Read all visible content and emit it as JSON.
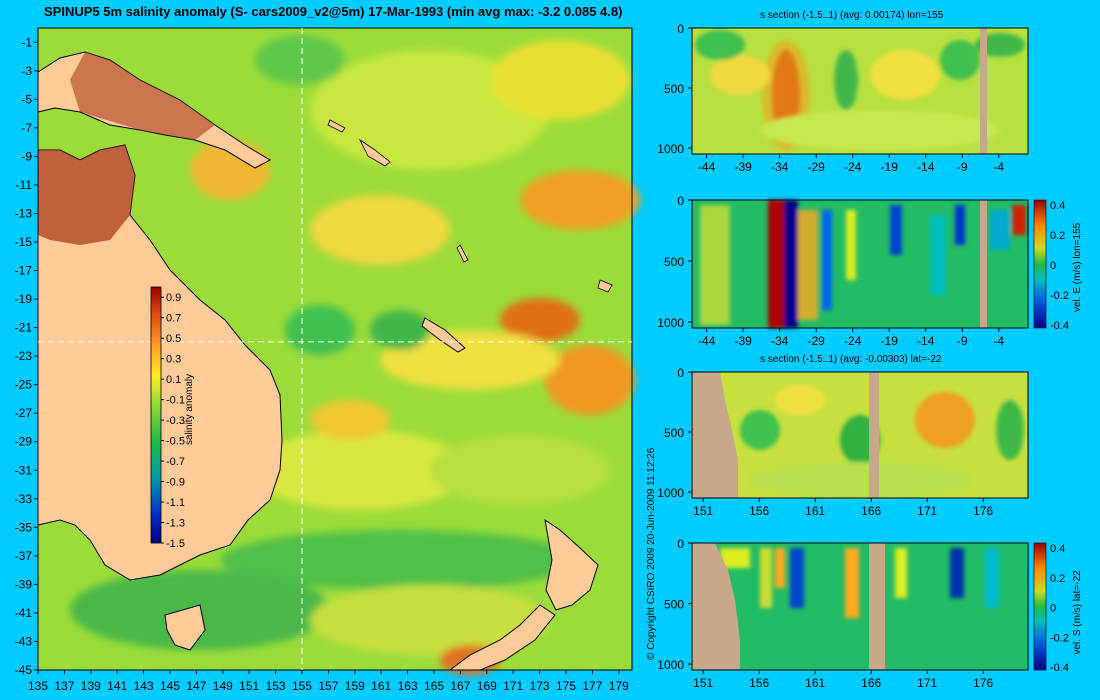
{
  "map": {
    "title": "SPINUP5 5m salinity anomaly (S- cars2009_v2@5m) 17-Mar-1993 (min avg max: -3.2 0.085 4.8)",
    "lon_ticks": [
      "135",
      "137",
      "139",
      "141",
      "143",
      "145",
      "147",
      "149",
      "151",
      "153",
      "155",
      "157",
      "159",
      "161",
      "163",
      "165",
      "167",
      "169",
      "171",
      "173",
      "175",
      "177",
      "179"
    ],
    "lat_ticks": [
      "-1",
      "-3",
      "-5",
      "-7",
      "-9",
      "-11",
      "-13",
      "-15",
      "-17",
      "-19",
      "-21",
      "-23",
      "-25",
      "-27",
      "-29",
      "-31",
      "-33",
      "-35",
      "-37",
      "-39",
      "-41",
      "-43",
      "-45"
    ],
    "section_lon": 155,
    "section_lat": -22,
    "colorbar": {
      "label": "salinity anomaly",
      "ticks": [
        "0.9",
        "0.7",
        "0.5",
        "0.3",
        "0.1",
        "-0.1",
        "-0.3",
        "-0.5",
        "-0.7",
        "-0.9",
        "-1.1",
        "-1.3",
        "-1.5"
      ]
    }
  },
  "copyright": "© Copyright CSIRO 2009   20-Jun-2009 11:12:26",
  "panels": [
    {
      "title": "s section (-1.5..1) (avg: 0.00174) lon=155",
      "xticks": [
        "-44",
        "-39",
        "-34",
        "-29",
        "-24",
        "-19",
        "-14",
        "-9",
        "-4"
      ],
      "yticks": [
        "0",
        "500",
        "1000"
      ],
      "cbar_label": "",
      "cbar_ticks": []
    },
    {
      "title": "",
      "xticks": [
        "-44",
        "-39",
        "-34",
        "-29",
        "-24",
        "-19",
        "-14",
        "-9",
        "-4"
      ],
      "yticks": [
        "0",
        "500",
        "1000"
      ],
      "cbar_label": "vel. E (m/s) lon=155",
      "cbar_ticks": [
        "0.4",
        "0.2",
        "0",
        "-0.2",
        "-0.4"
      ]
    },
    {
      "title": "s section (-1.5..1) (avg: -0.00303) lat=-22",
      "xticks": [
        "151",
        "156",
        "161",
        "166",
        "171",
        "176"
      ],
      "yticks": [
        "0",
        "500",
        "1000"
      ],
      "cbar_label": "",
      "cbar_ticks": []
    },
    {
      "title": "",
      "xticks": [
        "151",
        "156",
        "161",
        "166",
        "171",
        "176"
      ],
      "yticks": [
        "0",
        "500",
        "1000"
      ],
      "cbar_label": "vel. S (m/s) lat=-22",
      "cbar_ticks": [
        "0.4",
        "0.2",
        "0",
        "-0.2",
        "-0.4"
      ]
    }
  ],
  "colors": {
    "background": "#00ccff",
    "land": "#ffcc99",
    "section_land": "#c8a88a"
  },
  "chart_data": [
    {
      "type": "heatmap",
      "title": "SPINUP5 5m salinity anomaly (S- cars2009_v2@5m) 17-Mar-1993 (min avg max: -3.2 0.085 4.8)",
      "x_range": [
        135,
        180
      ],
      "y_range": [
        -45,
        0
      ],
      "value_range": [
        -1.5,
        1.0
      ],
      "stats": {
        "min": -3.2,
        "avg": 0.085,
        "max": 4.8
      },
      "colorbar_label": "salinity anomaly"
    },
    {
      "type": "heatmap",
      "title": "s section (-1.5..1) (avg: 0.00174) lon=155",
      "x_range": [
        -46,
        0
      ],
      "y_range": [
        1000,
        0
      ],
      "avg": 0.00174
    },
    {
      "type": "heatmap",
      "x_range": [
        -46,
        0
      ],
      "y_range": [
        1000,
        0
      ],
      "colorbar_label": "vel. E (m/s) lon=155",
      "value_range": [
        -0.4,
        0.4
      ]
    },
    {
      "type": "heatmap",
      "title": "s section (-1.5..1) (avg: -0.00303) lat=-22",
      "x_range": [
        150,
        180
      ],
      "y_range": [
        1000,
        0
      ],
      "avg": -0.00303
    },
    {
      "type": "heatmap",
      "x_range": [
        150,
        180
      ],
      "y_range": [
        1000,
        0
      ],
      "colorbar_label": "vel. S (m/s) lat=-22",
      "value_range": [
        -0.4,
        0.4
      ]
    }
  ]
}
